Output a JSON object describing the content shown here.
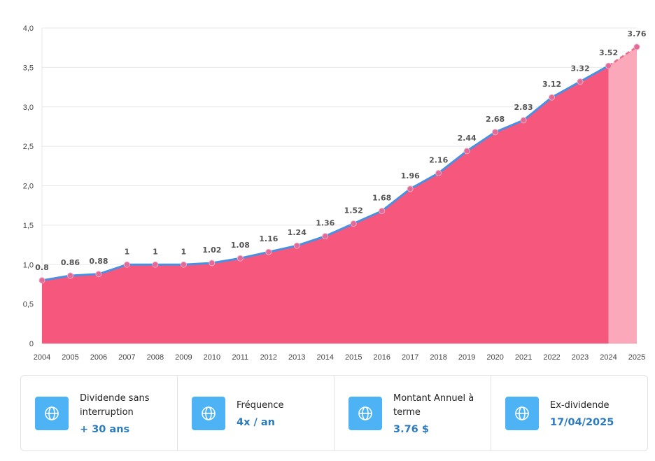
{
  "chart_data": {
    "type": "area",
    "title": "",
    "xlabel": "",
    "ylabel": "",
    "x": [
      "2004",
      "2005",
      "2006",
      "2007",
      "2008",
      "2009",
      "2010",
      "2011",
      "2012",
      "2013",
      "2014",
      "2015",
      "2016",
      "2017",
      "2018",
      "2019",
      "2020",
      "2021",
      "2022",
      "2023",
      "2024",
      "2025"
    ],
    "values": [
      0.8,
      0.86,
      0.88,
      1,
      1,
      1,
      1.02,
      1.08,
      1.16,
      1.24,
      1.36,
      1.52,
      1.68,
      1.96,
      2.16,
      2.44,
      2.68,
      2.83,
      3.12,
      3.32,
      3.52,
      3.76
    ],
    "value_labels": [
      "0.8",
      "0.86",
      "0.88",
      "1",
      "1",
      "1",
      "1.02",
      "1.08",
      "1.16",
      "1.24",
      "1.36",
      "1.52",
      "1.68",
      "1.96",
      "2.16",
      "2.44",
      "2.68",
      "2.83",
      "3.12",
      "3.32",
      "3.52",
      "3.76"
    ],
    "projected_from_index": 20,
    "ylim": [
      0,
      4
    ],
    "yticks": [
      0,
      0.5,
      1,
      1.5,
      2,
      2.5,
      3,
      3.5,
      4
    ],
    "ytick_labels": [
      "0",
      "0,5",
      "1,0",
      "1,5",
      "2,0",
      "2,5",
      "3,0",
      "3,5",
      "4,0"
    ],
    "grid": true,
    "colors": {
      "area": "#f5587c",
      "projected_area": "#fba8ba",
      "line": "#4a90e2",
      "projected_line": "#f06a8a",
      "marker": "#e06a98"
    }
  },
  "cards": [
    {
      "icon": "globe-icon",
      "label": "Dividende sans interruption",
      "value": "+ 30 ans"
    },
    {
      "icon": "globe-icon",
      "label": "Fréquence",
      "value": "4x / an"
    },
    {
      "icon": "globe-icon",
      "label": "Montant Annuel à terme",
      "value": "3.76 $"
    },
    {
      "icon": "globe-icon",
      "label": "Ex-dividende",
      "value": "17/04/2025"
    }
  ]
}
